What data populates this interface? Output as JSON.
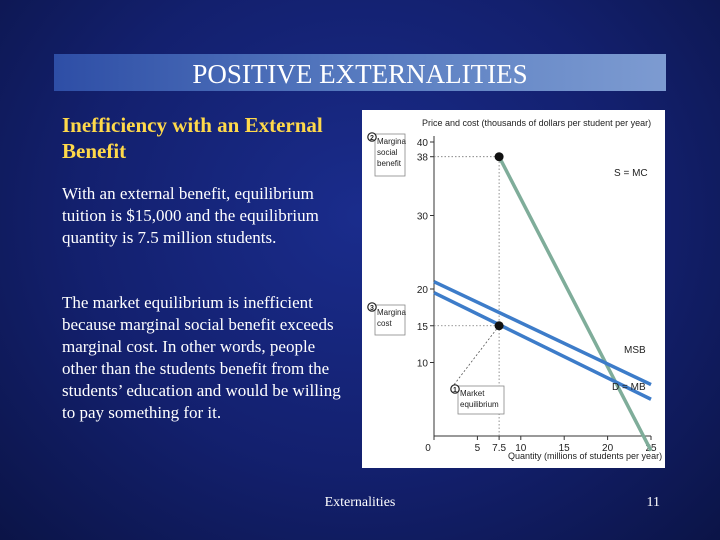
{
  "slide": {
    "title": "POSITIVE EXTERNALITIES",
    "subtitle": "Inefficiency with an External Benefit",
    "paragraph_1": "With an external benefit, equilibrium tuition is $15,000 and the equilibrium quantity is 7.5 million students.",
    "paragraph_2": "The market equilibrium is inefficient because marginal social benefit exceeds marginal cost. In other words, people other than the students benefit from the students’ education and would be willing to pay something for it.",
    "footer": "Externalities",
    "page_number": "11"
  },
  "chart_data": {
    "type": "line",
    "title": "",
    "xlabel": "Quantity (millions of students per year)",
    "ylabel": "Price and cost (thousands of dollars per student per year)",
    "xlim": [
      0,
      25
    ],
    "ylim": [
      0,
      40
    ],
    "x_ticks": [
      0,
      5,
      7.5,
      10,
      15,
      20,
      25
    ],
    "x_tick_labels": [
      "0",
      "5",
      "7.5",
      "10",
      "15",
      "20",
      "25"
    ],
    "y_ticks": [
      10,
      15,
      20,
      30,
      38,
      40
    ],
    "y_tick_labels": [
      "10",
      "15",
      "20",
      "30",
      "38",
      "40"
    ],
    "grid": false,
    "series": [
      {
        "name": "S = MC",
        "color": "#7fad9a",
        "x": [
          7.5,
          25
        ],
        "y": [
          38,
          -2
        ]
      },
      {
        "name": "MSB",
        "color": "#3d7cc9",
        "x": [
          0,
          25
        ],
        "y": [
          21,
          7
        ]
      },
      {
        "name": "D = MB",
        "color": "#3d7cc9",
        "x": [
          0,
          25
        ],
        "y": [
          19.5,
          5
        ]
      }
    ],
    "points": [
      {
        "x": 7.5,
        "y": 38,
        "marker": "2"
      },
      {
        "x": 7.5,
        "y": 15,
        "marker": "3"
      }
    ],
    "annotations": [
      {
        "number": "1",
        "text_lines": [
          "Market",
          "equilibrium"
        ]
      },
      {
        "number": "2",
        "text_lines": [
          "Margina",
          "social",
          "benefit"
        ]
      },
      {
        "number": "3",
        "text_lines": [
          "Margina",
          "cost"
        ]
      }
    ]
  }
}
